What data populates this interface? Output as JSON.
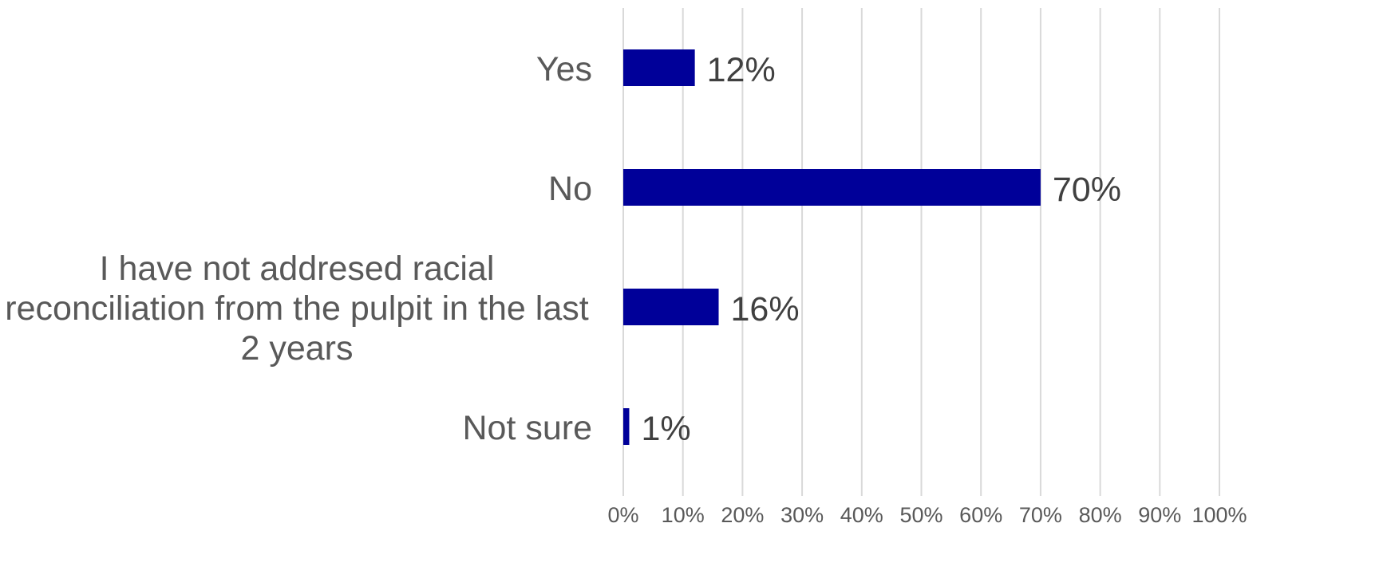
{
  "chart_data": {
    "type": "bar",
    "orientation": "horizontal",
    "categories": [
      "Yes",
      "No",
      "I have not addresed racial reconciliation from the pulpit in the last 2 years",
      "Not sure"
    ],
    "values": [
      12,
      70,
      16,
      1
    ],
    "data_labels": [
      "12%",
      "70%",
      "16%",
      "1%"
    ],
    "xlim": [
      0,
      100
    ],
    "xticks": [
      "0%",
      "10%",
      "20%",
      "30%",
      "40%",
      "50%",
      "60%",
      "70%",
      "80%",
      "90%",
      "100%"
    ],
    "grid": "vertical",
    "bar_color": "#000099",
    "grid_color": "#d9d9d9",
    "label_color": "#595959",
    "value_label_color": "#404040",
    "title": "",
    "xlabel": "",
    "ylabel": ""
  }
}
